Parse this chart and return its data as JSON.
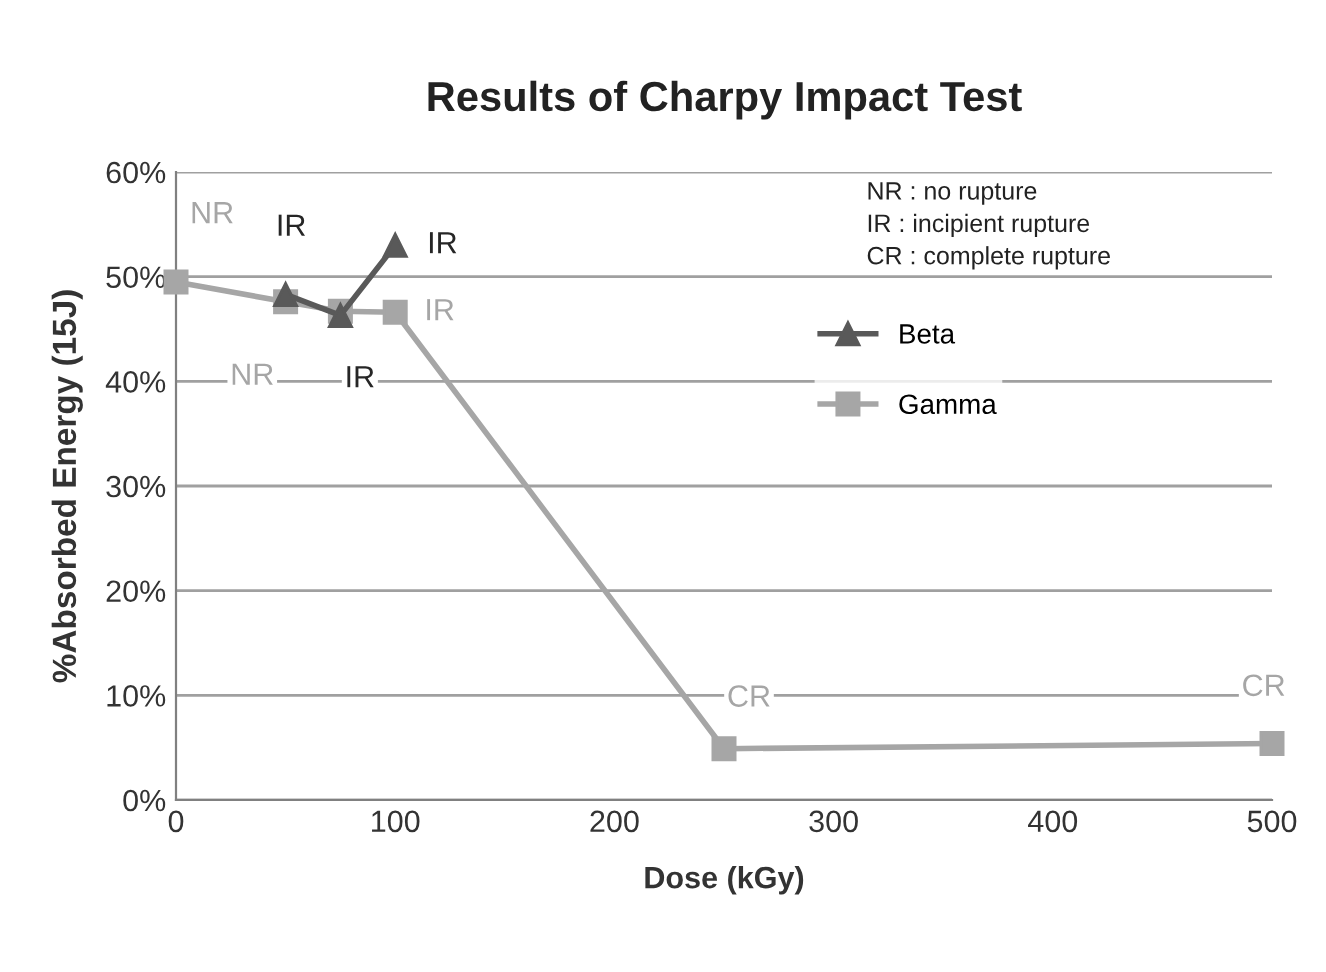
{
  "chart_data": {
    "type": "line",
    "title": "Results of Charpy Impact Test",
    "xlabel": "Dose (kGy)",
    "ylabel": "%Absorbed Energy (15J)",
    "series": [
      {
        "name": "Beta",
        "color": "#595959",
        "marker": "triangle",
        "x": [
          50,
          75,
          100
        ],
        "values": [
          48.3,
          46.3,
          53.0
        ]
      },
      {
        "name": "Gamma",
        "color": "#a6a6a6",
        "marker": "square",
        "x": [
          0,
          50,
          75,
          100,
          250,
          500
        ],
        "values": [
          49.5,
          47.6,
          46.7,
          46.6,
          4.9,
          5.4
        ]
      }
    ],
    "annotations": [
      "NR : no rupture\nIR : incipient rupture\nCR : complete rupture",
      {
        "text": "NR",
        "x": 0,
        "y": 49.5
      },
      {
        "text": "IR",
        "x": 50,
        "y": 48.3
      },
      {
        "text": "NR",
        "x": 50,
        "y": 47.6
      },
      {
        "text": "IR",
        "x": 75,
        "y": 46.3
      },
      {
        "text": "IR",
        "x": 100,
        "y": 53.0
      },
      {
        "text": "IR",
        "x": 100,
        "y": 46.6
      },
      {
        "text": "CR",
        "x": 250,
        "y": 4.9
      },
      {
        "text": "CR",
        "x": 500,
        "y": 5.4
      }
    ],
    "xlim": [
      0,
      500
    ],
    "xticks": [
      0,
      100,
      200,
      300,
      400,
      500
    ],
    "ylim": [
      0,
      60
    ],
    "yticks": [
      {
        "value": 0,
        "label": "0%"
      },
      {
        "value": 10,
        "label": "10%"
      },
      {
        "value": 20,
        "label": "20%"
      },
      {
        "value": 30,
        "label": "30%"
      },
      {
        "value": 40,
        "label": "40%"
      },
      {
        "value": 50,
        "label": "50%"
      },
      {
        "value": 60,
        "label": "60%"
      }
    ],
    "grid": "y",
    "legend": "top right"
  }
}
